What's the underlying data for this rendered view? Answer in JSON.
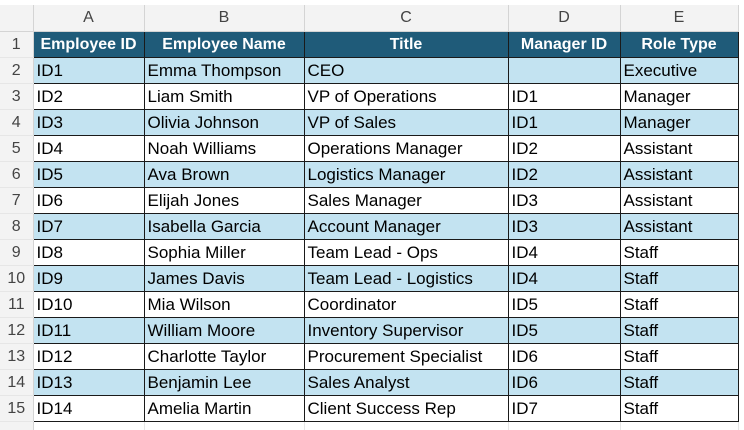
{
  "columns": [
    "A",
    "B",
    "C",
    "D",
    "E"
  ],
  "headers": [
    "Employee ID",
    "Employee Name",
    "Title",
    "Manager ID",
    "Role Type"
  ],
  "row_numbers": [
    "1",
    "2",
    "3",
    "4",
    "5",
    "6",
    "7",
    "8",
    "9",
    "10",
    "11",
    "12",
    "13",
    "14",
    "15"
  ],
  "rows": [
    [
      "ID1",
      "Emma Thompson",
      "CEO",
      "",
      "Executive"
    ],
    [
      "ID2",
      "Liam Smith",
      "VP of Operations",
      "ID1",
      "Manager"
    ],
    [
      "ID3",
      "Olivia Johnson",
      "VP of Sales",
      "ID1",
      "Manager"
    ],
    [
      "ID4",
      "Noah Williams",
      "Operations Manager",
      "ID2",
      "Assistant"
    ],
    [
      "ID5",
      "Ava Brown",
      "Logistics Manager",
      "ID2",
      "Assistant"
    ],
    [
      "ID6",
      "Elijah Jones",
      "Sales Manager",
      "ID3",
      "Assistant"
    ],
    [
      "ID7",
      "Isabella Garcia",
      "Account Manager",
      "ID3",
      "Assistant"
    ],
    [
      "ID8",
      "Sophia Miller",
      "Team Lead - Ops",
      "ID4",
      "Staff"
    ],
    [
      "ID9",
      "James Davis",
      "Team Lead - Logistics",
      "ID4",
      "Staff"
    ],
    [
      "ID10",
      "Mia Wilson",
      "Coordinator",
      "ID5",
      "Staff"
    ],
    [
      "ID11",
      "William Moore",
      "Inventory Supervisor",
      "ID5",
      "Staff"
    ],
    [
      "ID12",
      "Charlotte Taylor",
      "Procurement Specialist",
      "ID6",
      "Staff"
    ],
    [
      "ID13",
      "Benjamin Lee",
      "Sales Analyst",
      "ID6",
      "Staff"
    ],
    [
      "ID14",
      "Amelia Martin",
      "Client Success Rep",
      "ID7",
      "Staff"
    ]
  ],
  "colors": {
    "header_fill": "#1f5b79",
    "band_fill": "#c3e3f1",
    "grid_header_fill": "#f3f3f3"
  }
}
